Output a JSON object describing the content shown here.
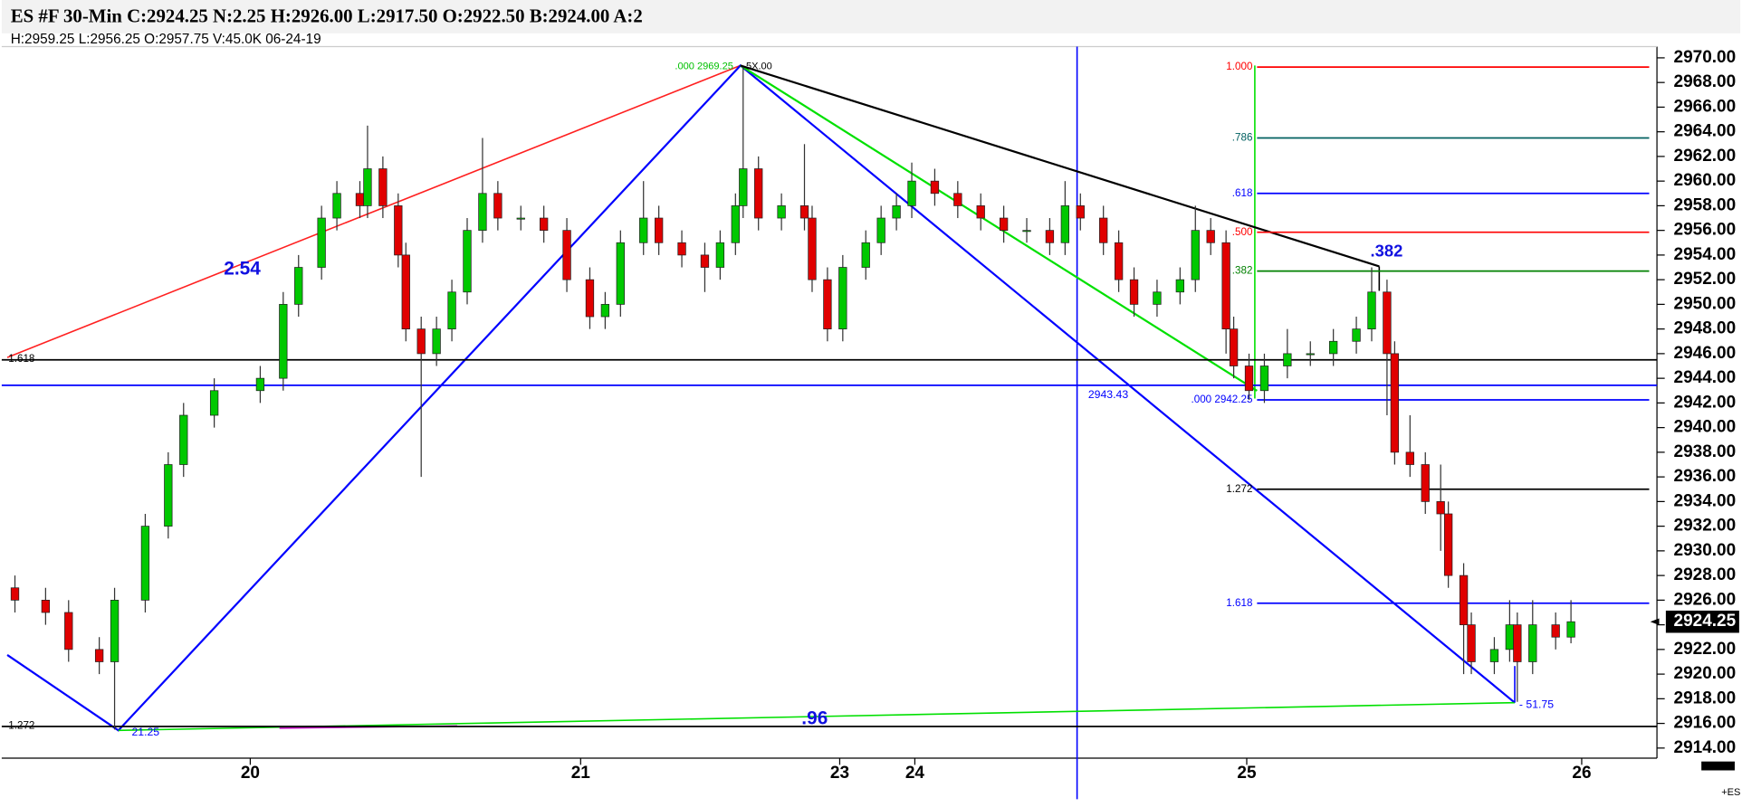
{
  "chart_data": {
    "type": "candlestick",
    "title": "ES #F 30-Min C:2924.25 N:2.25 H:2926.00 L:2917.50 O:2922.50 B:2924.00 A:2",
    "subtitle": "H:2959.25  L:2956.25  O:2957.75  V:45.0K  06-24-19",
    "symbol": "+ES",
    "up_color": "#00c800",
    "down_color": "#e00000",
    "x": [
      1,
      5,
      8,
      12,
      14,
      18,
      21,
      23,
      27,
      33,
      36,
      38,
      41,
      43,
      46,
      47,
      49,
      51,
      52,
      54,
      56,
      58,
      60,
      62,
      64,
      67,
      70,
      73,
      76,
      78,
      80,
      83,
      85,
      88,
      91,
      93,
      95,
      96,
      98,
      101,
      104,
      105,
      107,
      109,
      112,
      114,
      116,
      118,
      121,
      124,
      127,
      130,
      133,
      136,
      138,
      140,
      143,
      145,
      147,
      150,
      153,
      155,
      157,
      159,
      160,
      162,
      164,
      167,
      170,
      173,
      176,
      178,
      180,
      181,
      183,
      185,
      187,
      188,
      190,
      191,
      194,
      196,
      197,
      199,
      202,
      204
    ],
    "open": [
      2927,
      2926,
      2925,
      2922,
      2921,
      2926,
      2932,
      2937,
      2941,
      2943,
      2944,
      2950,
      2953,
      2957,
      2959,
      2958,
      2961,
      2958,
      2954,
      2948,
      2946,
      2948,
      2951,
      2956,
      2959,
      2957,
      2957,
      2956,
      2952,
      2949,
      2950,
      2955,
      2957,
      2955,
      2954,
      2953,
      2955,
      2958,
      2961,
      2957,
      2958,
      2957,
      2952,
      2948,
      2953,
      2955,
      2957,
      2958,
      2960,
      2959,
      2958,
      2957,
      2956,
      2956,
      2955,
      2958,
      2957,
      2955,
      2952,
      2950,
      2951,
      2952,
      2956,
      2955,
      2948,
      2945,
      2943,
      2945,
      2946,
      2946,
      2947,
      2948,
      2951,
      2946,
      2938,
      2937,
      2934,
      2933,
      2928,
      2924,
      2921,
      2922,
      2924,
      2921,
      2924,
      2923
    ],
    "high": [
      2928,
      2927,
      2926,
      2923,
      2927,
      2933,
      2938,
      2942,
      2944,
      2945,
      2951,
      2954,
      2958,
      2960,
      2960,
      2964.5,
      2962,
      2959,
      2955,
      2949,
      2949,
      2952,
      2957,
      2963.5,
      2960,
      2958,
      2958,
      2957,
      2953,
      2951,
      2956,
      2960,
      2958,
      2956,
      2955,
      2956,
      2959,
      2969.25,
      2962,
      2959,
      2963,
      2958,
      2953,
      2954,
      2956,
      2958,
      2959,
      2961.5,
      2961,
      2960,
      2959,
      2958,
      2957,
      2957,
      2960,
      2959,
      2958,
      2956,
      2953,
      2952,
      2953,
      2958,
      2957,
      2956,
      2949,
      2946,
      2946,
      2948,
      2947,
      2948,
      2949,
      2953,
      2952,
      2947,
      2941,
      2938,
      2937,
      2934,
      2929,
      2925,
      2923,
      2926,
      2925,
      2926,
      2925,
      2926
    ],
    "low": [
      2925,
      2924,
      2921,
      2920,
      2915.5,
      2925,
      2931,
      2936,
      2940,
      2942,
      2943,
      2949,
      2952,
      2956,
      2957,
      2957,
      2957,
      2953,
      2947,
      2936,
      2945,
      2947,
      2950,
      2955,
      2956,
      2956,
      2955,
      2951,
      2948,
      2948,
      2949,
      2954,
      2954,
      2953,
      2951,
      2952,
      2954,
      2957,
      2956,
      2956,
      2956,
      2951,
      2947,
      2947,
      2952,
      2954,
      2956,
      2957,
      2958,
      2957,
      2956,
      2955,
      2955,
      2954,
      2954,
      2956,
      2954,
      2951,
      2949,
      2949,
      2950,
      2951,
      2954,
      2946,
      2944,
      2942.25,
      2942,
      2944,
      2945,
      2945,
      2946,
      2947,
      2941,
      2937,
      2936,
      2933,
      2930,
      2927,
      2920,
      2920,
      2920,
      2921,
      2917.75,
      2920,
      2922,
      2922.5
    ],
    "close": [
      2926,
      2925,
      2922,
      2921,
      2926,
      2932,
      2937,
      2941,
      2943,
      2944,
      2950,
      2953,
      2957,
      2959,
      2958,
      2961,
      2958,
      2954,
      2948,
      2946,
      2948,
      2951,
      2956,
      2959,
      2957,
      2957,
      2956,
      2952,
      2949,
      2950,
      2955,
      2957,
      2955,
      2954,
      2953,
      2955,
      2958,
      2961,
      2957,
      2958,
      2957,
      2952,
      2948,
      2953,
      2955,
      2957,
      2958,
      2960,
      2959,
      2958,
      2957,
      2956,
      2956,
      2955,
      2958,
      2957,
      2955,
      2952,
      2950,
      2951,
      2952,
      2956,
      2955,
      2948,
      2945,
      2943,
      2945,
      2946,
      2946,
      2947,
      2948,
      2951,
      2946,
      2938,
      2937,
      2934,
      2933,
      2928,
      2924,
      2921,
      2922,
      2924,
      2921,
      2924,
      2923,
      2924.25
    ],
    "xlim": [
      0,
      215
    ],
    "xticks": [
      {
        "value": 31.7,
        "label": "20"
      },
      {
        "value": 74.8,
        "label": "21"
      },
      {
        "value": 108.6,
        "label": "23"
      },
      {
        "value": 118.4,
        "label": "24"
      },
      {
        "value": 161.7,
        "label": "25"
      },
      {
        "value": 205.4,
        "label": "26"
      }
    ],
    "ylim": [
      2913,
      2971
    ],
    "yticks": [
      {
        "value": 2914,
        "label": "2914.00"
      },
      {
        "value": 2916,
        "label": "2916.00"
      },
      {
        "value": 2918,
        "label": "2918.00"
      },
      {
        "value": 2920,
        "label": "2920.00"
      },
      {
        "value": 2922,
        "label": "2922.00"
      },
      {
        "value": 2924,
        "label": "2924.00"
      },
      {
        "value": 2926,
        "label": "2926.00"
      },
      {
        "value": 2928,
        "label": "2928.00"
      },
      {
        "value": 2930,
        "label": "2930.00"
      },
      {
        "value": 2932,
        "label": "2932.00"
      },
      {
        "value": 2934,
        "label": "2934.00"
      },
      {
        "value": 2936,
        "label": "2936.00"
      },
      {
        "value": 2938,
        "label": "2938.00"
      },
      {
        "value": 2940,
        "label": "2940.00"
      },
      {
        "value": 2942,
        "label": "2942.00"
      },
      {
        "value": 2944,
        "label": "2944.00"
      },
      {
        "value": 2946,
        "label": "2946.00"
      },
      {
        "value": 2948,
        "label": "2948.00"
      },
      {
        "value": 2950,
        "label": "2950.00"
      },
      {
        "value": 2952,
        "label": "2952.00"
      },
      {
        "value": 2954,
        "label": "2954.00"
      },
      {
        "value": 2956,
        "label": "2956.00"
      },
      {
        "value": 2958,
        "label": "2958.00"
      },
      {
        "value": 2960,
        "label": "2960.00"
      },
      {
        "value": 2962,
        "label": "2962.00"
      },
      {
        "value": 2964,
        "label": "2964.00"
      },
      {
        "value": 2966,
        "label": "2966.00"
      },
      {
        "value": 2968,
        "label": "2968.00"
      },
      {
        "value": 2970,
        "label": "2970.00"
      }
    ],
    "last_price": {
      "value": 2924.25,
      "label": "2924.25"
    },
    "fib_levels": [
      {
        "value": 2969.25,
        "label": "1.000",
        "color": "#ff0000"
      },
      {
        "value": 2963.5,
        "label": ".786",
        "color": "#006060"
      },
      {
        "value": 2959,
        "label": ".618",
        "color": "#0000ff"
      },
      {
        "value": 2955.85,
        "label": ".500",
        "color": "#ff0000"
      },
      {
        "value": 2952.7,
        "label": ".382",
        "color": "#008000"
      },
      {
        "value": 2942.25,
        "label": ".000 2942.25",
        "color": "#0000ff"
      },
      {
        "value": 2935,
        "label": "1.272",
        "color": "#000000"
      },
      {
        "value": 2925.75,
        "label": "1.618",
        "color": "#0000ff"
      }
    ],
    "full_levels": [
      {
        "value": 2945.5,
        "label": "1.618",
        "color": "#000000"
      },
      {
        "value": 2943.43,
        "label": "2943.43",
        "color": "#0000ff"
      },
      {
        "value": 2915.75,
        "label": "1.272",
        "color": "#000000"
      }
    ],
    "annotations": [
      "2.54",
      ".96",
      ".382",
      ".000 2969.25",
      "5X.00",
      "21.25",
      "- 51.75"
    ]
  }
}
